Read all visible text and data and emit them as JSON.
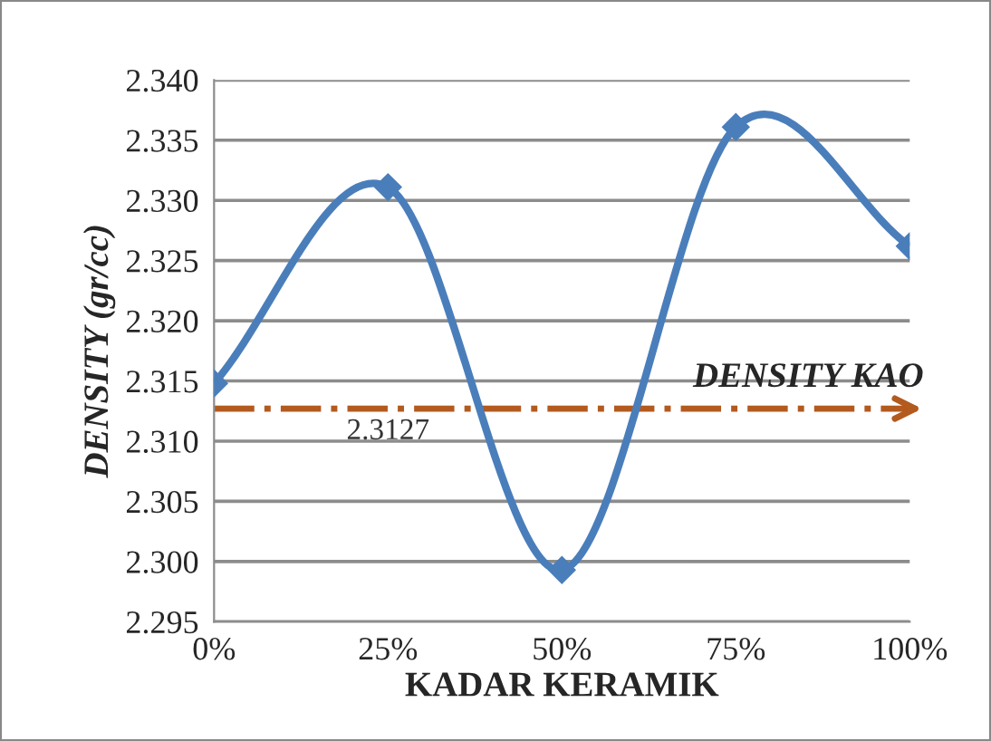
{
  "chart_data": {
    "type": "line",
    "xlabel": "KADAR KERAMIK",
    "ylabel": "DENSITY (gr/cc)",
    "categories": [
      "0%",
      "25%",
      "50%",
      "75%",
      "100%"
    ],
    "series": [
      {
        "color": "#4a7ebb",
        "values": [
          2.3148,
          2.3311,
          2.2993,
          2.3361,
          2.3262
        ]
      }
    ],
    "marker": "diamond",
    "line_style": "solid",
    "ylim": [
      2.295,
      2.34
    ],
    "yticks": [
      2.295,
      {
        "value": 2.3,
        "label": "2.300"
      },
      2.305,
      {
        "value": 2.31,
        "label": "2.310"
      },
      2.315,
      {
        "value": 2.32,
        "label": "2.320"
      },
      2.325,
      {
        "value": 2.33,
        "label": "2.330"
      },
      2.335,
      {
        "value": 2.34,
        "label": "2.340"
      }
    ],
    "ref_lines": [
      {
        "axis": "y",
        "value": 2.3127,
        "label": "DENSITY KAO",
        "color": "#b35a1f",
        "line_style": "dashdot"
      }
    ],
    "annotations": [
      {
        "text": "2.3127",
        "x": "25%",
        "y": 2.3127
      }
    ],
    "grid": "y",
    "legend": false
  }
}
